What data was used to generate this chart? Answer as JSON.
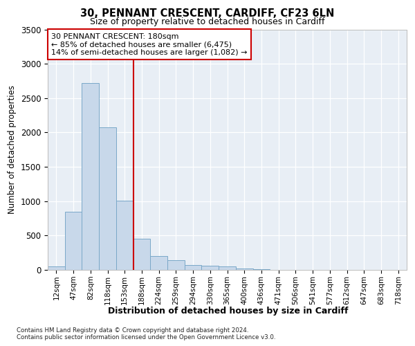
{
  "title1": "30, PENNANT CRESCENT, CARDIFF, CF23 6LN",
  "title2": "Size of property relative to detached houses in Cardiff",
  "xlabel": "Distribution of detached houses by size in Cardiff",
  "ylabel": "Number of detached properties",
  "categories": [
    "12sqm",
    "47sqm",
    "82sqm",
    "118sqm",
    "153sqm",
    "188sqm",
    "224sqm",
    "259sqm",
    "294sqm",
    "330sqm",
    "365sqm",
    "400sqm",
    "436sqm",
    "471sqm",
    "506sqm",
    "541sqm",
    "577sqm",
    "612sqm",
    "647sqm",
    "683sqm",
    "718sqm"
  ],
  "values": [
    50,
    850,
    2720,
    2070,
    1010,
    450,
    200,
    140,
    70,
    60,
    50,
    20,
    15,
    0,
    0,
    0,
    0,
    0,
    0,
    0,
    0
  ],
  "bar_color": "#c8d8ea",
  "bar_edge_color": "#7aa8c8",
  "vline_color": "#cc0000",
  "vline_index": 5,
  "annotation_text": "30 PENNANT CRESCENT: 180sqm\n← 85% of detached houses are smaller (6,475)\n14% of semi-detached houses are larger (1,082) →",
  "annotation_box_edgecolor": "#cc0000",
  "ylim": [
    0,
    3500
  ],
  "yticks": [
    0,
    500,
    1000,
    1500,
    2000,
    2500,
    3000,
    3500
  ],
  "footer1": "Contains HM Land Registry data © Crown copyright and database right 2024.",
  "footer2": "Contains public sector information licensed under the Open Government Licence v3.0.",
  "fig_bg_color": "#ffffff",
  "plot_bg_color": "#e8eef5"
}
